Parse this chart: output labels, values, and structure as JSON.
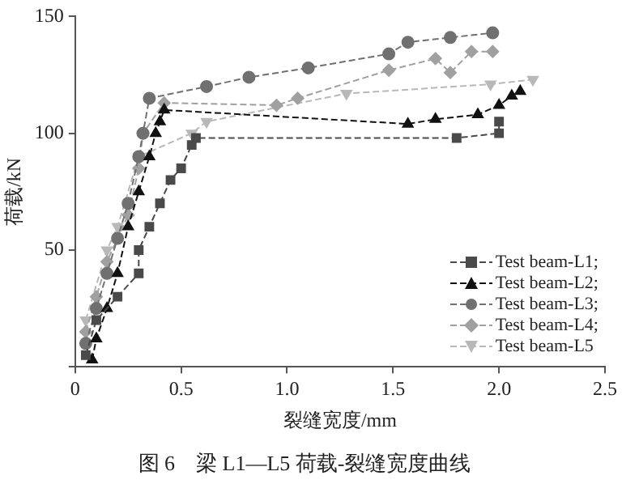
{
  "chart_data": {
    "type": "line",
    "title": "图 6　梁 L1—L5 荷载-裂缝宽度曲线",
    "xlabel": "裂缝宽度/mm",
    "ylabel": "荷载/kN",
    "xlim": [
      0,
      2.5
    ],
    "xticks": [
      0,
      {
        "value": 0.5,
        "label": "0.5"
      },
      {
        "value": 1,
        "label": "1.0"
      },
      {
        "value": 1.5,
        "label": "1.5"
      },
      {
        "value": 2,
        "label": "2.0"
      },
      {
        "value": 2.5,
        "label": "2.5"
      }
    ],
    "ylim": [
      0,
      150
    ],
    "yticks": [
      {
        "value": 0,
        "label": null
      },
      50,
      100,
      150
    ],
    "grid": false,
    "legend": "bottom right",
    "line_style": "dashed",
    "series": [
      {
        "name": "Test beam-L1;",
        "color": "#4a4a4a",
        "marker": "square",
        "x": [
          0.05,
          0.1,
          0.2,
          0.3,
          0.3,
          0.35,
          0.4,
          0.45,
          0.5,
          0.55,
          0.57,
          1.8,
          2.0,
          2.0
        ],
        "values": [
          5,
          20,
          30,
          40,
          50,
          60,
          70,
          80,
          85,
          95,
          98,
          98,
          100,
          105
        ]
      },
      {
        "name": "Test beam-L2;",
        "color": "#111111",
        "marker": "triangle",
        "x": [
          0.08,
          0.1,
          0.15,
          0.2,
          0.25,
          0.3,
          0.35,
          0.38,
          0.4,
          0.42,
          1.57,
          1.7,
          1.9,
          2.0,
          2.06,
          2.1
        ],
        "values": [
          3,
          12,
          25,
          40,
          60,
          75,
          90,
          100,
          105,
          110,
          104,
          106,
          108,
          112,
          116,
          118
        ]
      },
      {
        "name": "Test beam-L3;",
        "color": "#707070",
        "marker": "circle",
        "x": [
          0.05,
          0.1,
          0.15,
          0.2,
          0.25,
          0.3,
          0.32,
          0.35,
          0.62,
          0.82,
          1.1,
          1.48,
          1.57,
          1.77,
          1.97
        ],
        "values": [
          10,
          25,
          40,
          55,
          70,
          90,
          100,
          115,
          120,
          124,
          128,
          134,
          139,
          141,
          143
        ]
      },
      {
        "name": "Test beam-L4;",
        "color": "#a0a0a0",
        "marker": "diamond",
        "x": [
          0.05,
          0.1,
          0.15,
          0.25,
          0.3,
          0.32,
          0.42,
          0.95,
          1.05,
          1.48,
          1.7,
          1.77,
          1.87,
          1.97
        ],
        "values": [
          15,
          30,
          45,
          65,
          85,
          100,
          113,
          112,
          115,
          127,
          132,
          126,
          135,
          135
        ]
      },
      {
        "name": "Test beam-L5",
        "color": "#b8b8b8",
        "marker": "triangle_down",
        "x": [
          0.05,
          0.1,
          0.15,
          0.2,
          0.3,
          0.35,
          0.55,
          0.62,
          1.28,
          1.96,
          2.16
        ],
        "values": [
          20,
          null,
          50,
          60,
          90,
          null,
          100,
          105,
          117,
          121,
          123
        ]
      }
    ]
  }
}
